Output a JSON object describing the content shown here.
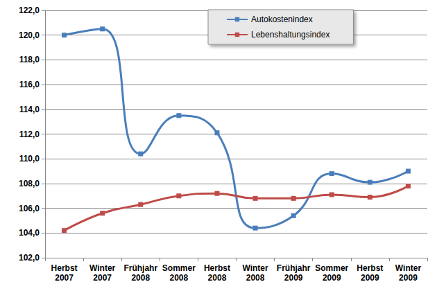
{
  "chart_data": {
    "type": "line",
    "categories": [
      "Herbst\n2007",
      "Winter\n2007",
      "Frühjahr\n2008",
      "Sommer\n2008",
      "Herbst\n2008",
      "Winter\n2008",
      "Frühjahr\n2009",
      "Sommer\n2009",
      "Herbst\n2009",
      "Winter\n2009"
    ],
    "series": [
      {
        "name": "Autokostenindex",
        "color": "#4a7ebb",
        "values": [
          120.0,
          120.5,
          110.4,
          113.5,
          112.1,
          104.4,
          105.4,
          108.8,
          108.1,
          109.0
        ]
      },
      {
        "name": "Lebenshaltungsindex",
        "color": "#be4b48",
        "values": [
          104.2,
          105.6,
          106.3,
          107.0,
          107.2,
          106.8,
          106.8,
          107.1,
          106.9,
          107.8
        ]
      }
    ],
    "ylim": [
      102,
      122
    ],
    "yticks": [
      {
        "value": 102,
        "label": "102,0"
      },
      {
        "value": 104,
        "label": "104,0"
      },
      {
        "value": 106,
        "label": "106,0"
      },
      {
        "value": 108,
        "label": "108,0"
      },
      {
        "value": 110,
        "label": "110,0"
      },
      {
        "value": 112,
        "label": "112,0"
      },
      {
        "value": 114,
        "label": "114,0"
      },
      {
        "value": 116,
        "label": "116,0"
      },
      {
        "value": 118,
        "label": "118,0"
      },
      {
        "value": 120,
        "label": "120,0"
      },
      {
        "value": 122,
        "label": "122,0"
      }
    ],
    "grid": true,
    "legend": "top",
    "marker": "square",
    "line_style": "smooth"
  }
}
